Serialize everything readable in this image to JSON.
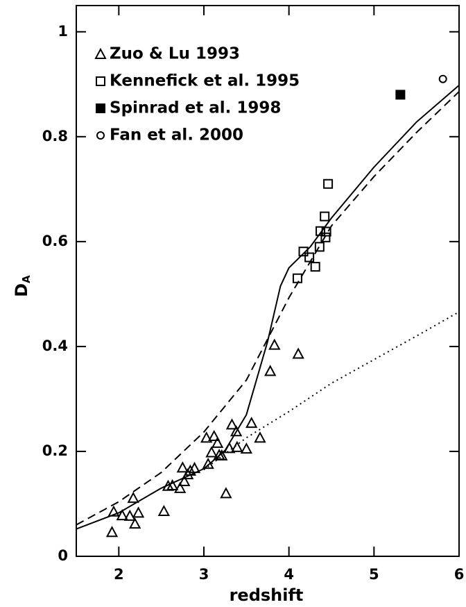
{
  "chart_data": {
    "type": "scatter",
    "x_label": "redshift",
    "y_label": "D",
    "y_label_sub": "A",
    "xlim": [
      1.5,
      6
    ],
    "ylim": [
      0,
      1.05
    ],
    "xticks": [
      2,
      3,
      4,
      5,
      6
    ],
    "yticks": [
      0,
      0.2,
      0.4,
      0.6,
      0.8,
      1
    ],
    "legend": "upper left",
    "series": [
      {
        "name": "Zuo & Lu 1993",
        "marker": "triangle",
        "filled": false,
        "color": "#000000",
        "x": [
          1.92,
          1.94,
          2.04,
          2.13,
          2.17,
          2.19,
          2.23,
          2.53,
          2.58,
          2.63,
          2.72,
          2.75,
          2.77,
          2.81,
          2.84,
          2.89,
          3.03,
          3.05,
          3.12,
          3.09,
          3.16,
          3.18,
          3.21,
          3.26,
          3.3,
          3.33,
          3.38,
          3.39,
          3.5,
          3.56,
          3.66,
          3.78,
          3.83,
          4.11
        ],
        "values": [
          0.046,
          0.085,
          0.078,
          0.077,
          0.111,
          0.062,
          0.083,
          0.086,
          0.134,
          0.135,
          0.13,
          0.169,
          0.143,
          0.156,
          0.163,
          0.168,
          0.226,
          0.176,
          0.229,
          0.198,
          0.216,
          0.193,
          0.192,
          0.12,
          0.206,
          0.251,
          0.238,
          0.208,
          0.205,
          0.254,
          0.226,
          0.353,
          0.403,
          0.386
        ]
      },
      {
        "name": "Kennefick et al. 1995",
        "marker": "square",
        "filled": false,
        "color": "#000000",
        "x": [
          4.1,
          4.17,
          4.24,
          4.31,
          4.36,
          4.37,
          4.42,
          4.43,
          4.44,
          4.46
        ],
        "values": [
          0.53,
          0.581,
          0.57,
          0.552,
          0.59,
          0.62,
          0.648,
          0.608,
          0.619,
          0.71
        ]
      },
      {
        "name": "Spinrad et al. 1998",
        "marker": "square",
        "filled": true,
        "color": "#000000",
        "x": [
          5.31
        ],
        "values": [
          0.88
        ]
      },
      {
        "name": "Fan et al. 2000",
        "marker": "circle",
        "filled": false,
        "color": "#000000",
        "x": [
          5.81
        ],
        "values": [
          0.91
        ]
      },
      {
        "line": "solid",
        "color": "#000000",
        "x": [
          1.5,
          2,
          2.5,
          3,
          3.25,
          3.5,
          3.75,
          3.9,
          4,
          4.25,
          4.5,
          5,
          5.5,
          6
        ],
        "values": [
          0.052,
          0.083,
          0.13,
          0.167,
          0.202,
          0.27,
          0.41,
          0.515,
          0.55,
          0.59,
          0.645,
          0.742,
          0.828,
          0.898
        ]
      },
      {
        "line": "dashed",
        "color": "#000000",
        "x": [
          1.5,
          2,
          2.5,
          3,
          3.5,
          4,
          4.5,
          5,
          5.5,
          6
        ],
        "values": [
          0.06,
          0.104,
          0.16,
          0.237,
          0.336,
          0.493,
          0.63,
          0.724,
          0.808,
          0.886
        ]
      },
      {
        "line": "dotted",
        "color": "#000000",
        "x": [
          3,
          3.5,
          4,
          4.5,
          5,
          5.5,
          6
        ],
        "values": [
          0.165,
          0.226,
          0.276,
          0.33,
          0.375,
          0.42,
          0.466
        ]
      }
    ]
  }
}
